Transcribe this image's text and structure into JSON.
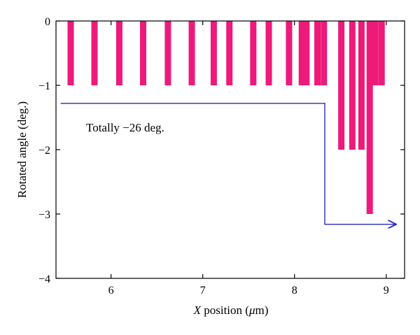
{
  "chart_data": {
    "type": "bar",
    "xlabel_var": "X",
    "xlabel_rest": " position (",
    "xlabel_unit": "μ",
    "xlabel_end": "m)",
    "ylabel": "Rotated angle (deg.)",
    "xlim": [
      5.4,
      9.2
    ],
    "ylim": [
      -4,
      0
    ],
    "x_ticks": [
      6,
      7,
      8,
      9
    ],
    "y_ticks": [
      0,
      -1,
      -2,
      -3,
      -4
    ],
    "bar_color": "#ee1a7a",
    "arrow_color": "#2b2bbd",
    "bars": [
      {
        "x": 5.56,
        "y": -1
      },
      {
        "x": 5.82,
        "y": -1
      },
      {
        "x": 6.09,
        "y": -1
      },
      {
        "x": 6.35,
        "y": -1
      },
      {
        "x": 6.62,
        "y": -1
      },
      {
        "x": 6.88,
        "y": -1
      },
      {
        "x": 7.12,
        "y": -1
      },
      {
        "x": 7.29,
        "y": -1
      },
      {
        "x": 7.55,
        "y": -1
      },
      {
        "x": 7.72,
        "y": -1
      },
      {
        "x": 7.94,
        "y": -1
      },
      {
        "x": 8.08,
        "y": -1
      },
      {
        "x": 8.13,
        "y": -1
      },
      {
        "x": 8.25,
        "y": -1
      },
      {
        "x": 8.32,
        "y": -1
      },
      {
        "x": 8.51,
        "y": -2
      },
      {
        "x": 8.63,
        "y": -2
      },
      {
        "x": 8.73,
        "y": -2
      },
      {
        "x": 8.82,
        "y": -3
      },
      {
        "x": 8.88,
        "y": -1
      },
      {
        "x": 8.95,
        "y": -1
      }
    ],
    "cumulative_arrow": {
      "x_start": 5.45,
      "x_step": 8.33,
      "x_end": 9.1,
      "y_start": -1.28,
      "y_end": -3.16
    },
    "annotation": "Totally −26 deg."
  }
}
